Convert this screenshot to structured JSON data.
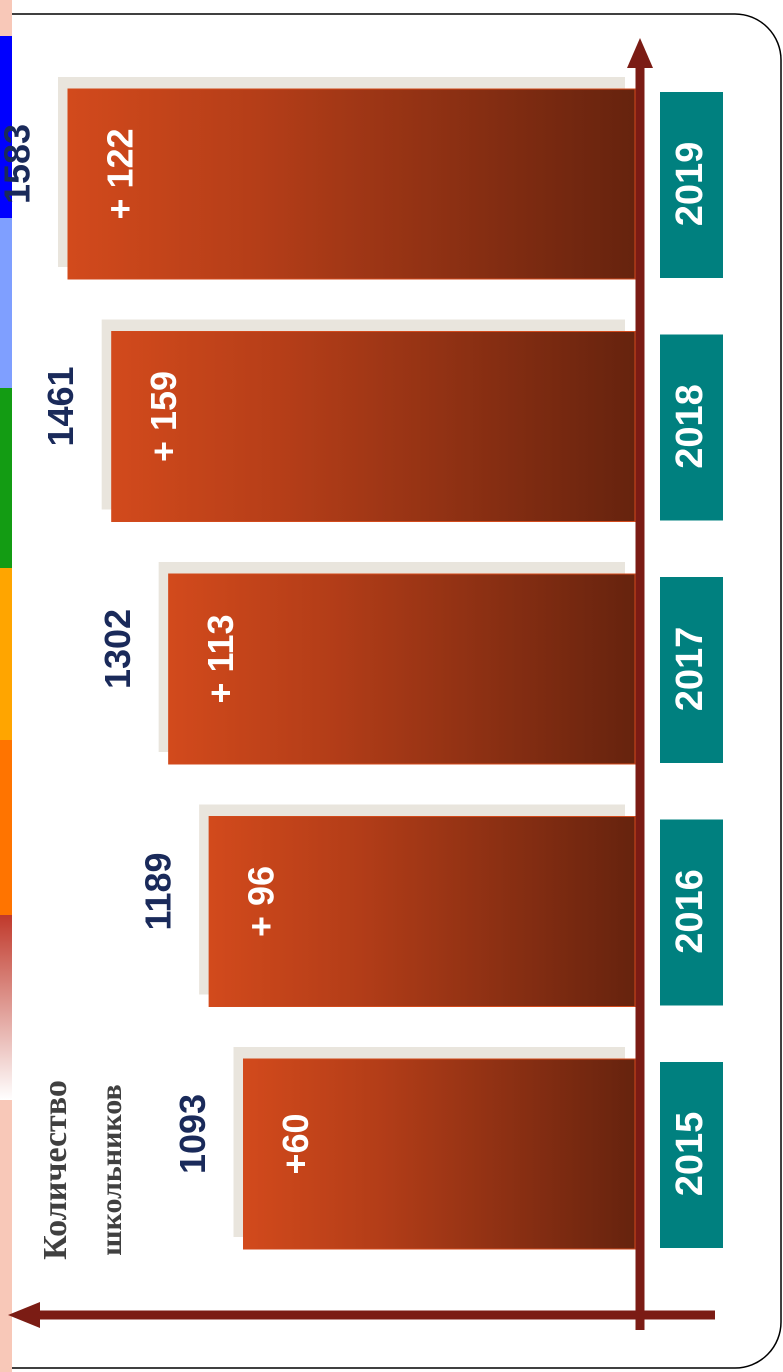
{
  "chart_data": {
    "type": "bar",
    "title_lines": [
      "Количество",
      "школьников"
    ],
    "categories": [
      "2015",
      "2016",
      "2017",
      "2018",
      "2019"
    ],
    "values": [
      1093,
      1189,
      1302,
      1461,
      1583
    ],
    "annotations": [
      "+60",
      "+ 96",
      "+ 113",
      "+ 159",
      "+ 122"
    ],
    "color": "#d24a1c",
    "category_color": "#00807f"
  }
}
